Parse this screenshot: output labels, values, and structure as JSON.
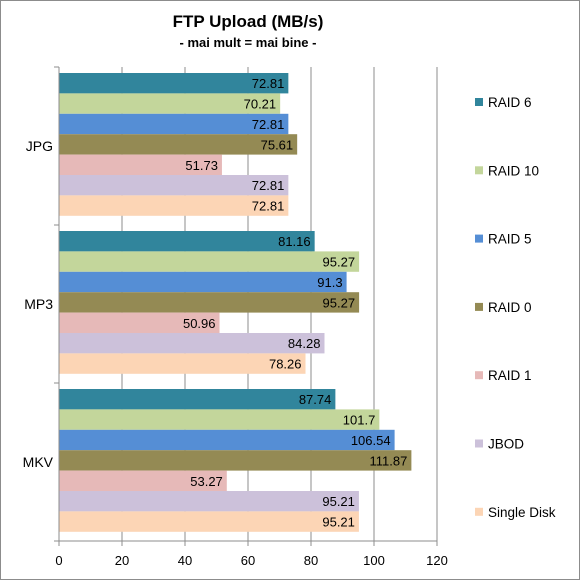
{
  "chart_data": {
    "type": "bar",
    "orientation": "horizontal",
    "title": "FTP Upload (MB/s)",
    "subtitle": "- mai mult = mai bine -",
    "categories": [
      "JPG",
      "MP3",
      "MKV"
    ],
    "xlim": [
      0,
      120
    ],
    "xticks": [
      0,
      20,
      40,
      60,
      80,
      100,
      120
    ],
    "grid": true,
    "legend_position": "right",
    "series": [
      {
        "name": "RAID 6",
        "color": "#31859c",
        "values": [
          72.81,
          81.16,
          87.74
        ]
      },
      {
        "name": "RAID 10",
        "color": "#c3d69b",
        "values": [
          70.21,
          95.27,
          101.7
        ]
      },
      {
        "name": "RAID 5",
        "color": "#558ed5",
        "values": [
          72.81,
          91.3,
          106.54
        ]
      },
      {
        "name": "RAID 0",
        "color": "#948a54",
        "values": [
          75.61,
          95.27,
          111.87
        ]
      },
      {
        "name": "RAID 1",
        "color": "#e6b9b8",
        "values": [
          51.73,
          50.96,
          53.27
        ]
      },
      {
        "name": "JBOD",
        "color": "#ccc1da",
        "values": [
          72.81,
          84.28,
          95.21
        ]
      },
      {
        "name": "Single Disk",
        "color": "#fcd5b5",
        "values": [
          72.81,
          78.26,
          95.21
        ]
      }
    ]
  }
}
